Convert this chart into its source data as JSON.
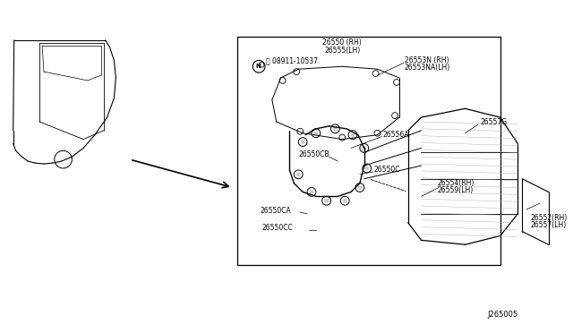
{
  "title": "",
  "background_color": "#ffffff",
  "fig_width": 6.4,
  "fig_height": 3.72,
  "dpi": 100,
  "labels": {
    "part_26550_RH": "26550 (RH)",
    "part_26555_LH": "26555(LH)",
    "part_08911": "ⓝ 08911-10537",
    "part_26553N": "26553N (RH)",
    "part_26553NA": "26553NA(LH)",
    "part_26556A": "26556A",
    "part_26557G": "26557G",
    "part_26550CB": "26550CB",
    "part_26550C": "26550C",
    "part_26554_RH": "26554(RH)",
    "part_26559_LH": "26559(LH)",
    "part_26550CA": "26550CA",
    "part_26550CC": "26550CC",
    "part_26552_RH": "26552(RH)",
    "part_26557_LH": "26557(LH)",
    "diagram_id": "J265005"
  },
  "font_size_labels": 5.5,
  "font_size_diagram_id": 6,
  "line_color": "#000000",
  "box_color": "#000000",
  "box_fill": "#ffffff"
}
